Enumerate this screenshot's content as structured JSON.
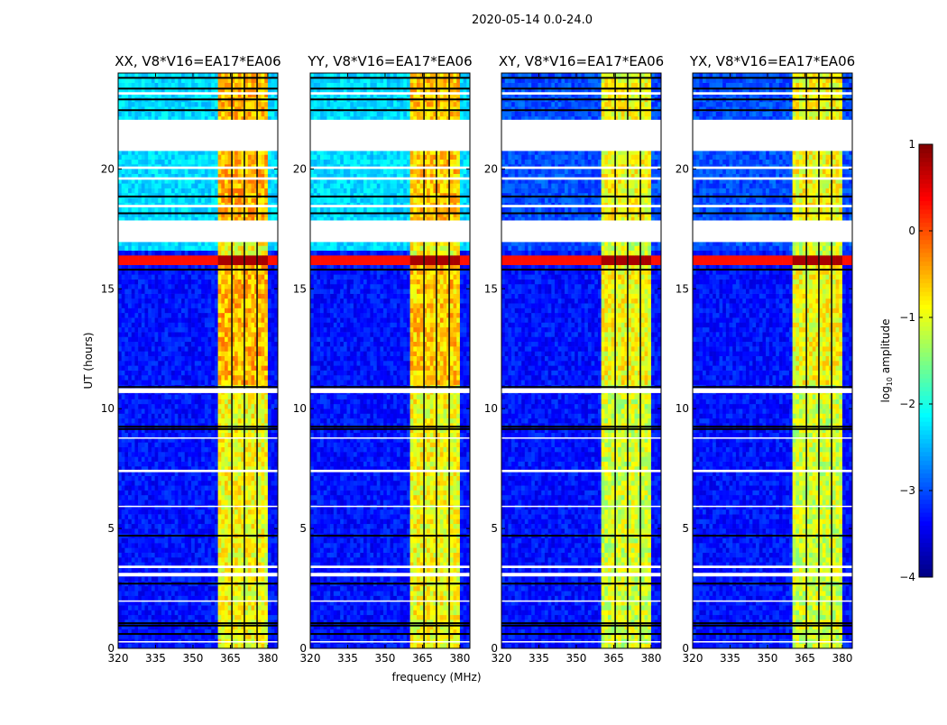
{
  "chart_data": {
    "type": "heatmap",
    "suptitle": "2020-05-14 0.0-24.0",
    "xlabel": "frequency (MHz)",
    "ylabel": "UT (hours)",
    "xlim": [
      320,
      384
    ],
    "ylim": [
      0,
      24
    ],
    "xticks": [
      "320",
      "335",
      "350",
      "365",
      "380"
    ],
    "xtick_values": [
      320,
      335,
      350,
      365,
      380
    ],
    "yticks": [
      "0",
      "5",
      "10",
      "15",
      "20"
    ],
    "ytick_values": [
      0,
      5,
      10,
      15,
      20
    ],
    "colorbar": {
      "label": "log10 amplitude",
      "label_main": "log",
      "label_sub": "10",
      "label_rest": " amplitude",
      "colormap": "jet",
      "range": [
        -4,
        1
      ],
      "ticks": [
        "−4",
        "−3",
        "−2",
        "−1",
        "0",
        "1"
      ],
      "tick_values": [
        -4,
        -3,
        -2,
        -1,
        0,
        1
      ]
    },
    "panels": [
      {
        "title": "XX, V8*V16=EA17*EA06",
        "background": -3.3,
        "late_background": -2.3,
        "band_level": -1.0,
        "mid_band_level": -0.6
      },
      {
        "title": "YY, V8*V16=EA17*EA06",
        "background": -3.3,
        "late_background": -2.3,
        "band_level": -1.0,
        "mid_band_level": -0.7
      },
      {
        "title": "XY, V8*V16=EA17*EA06",
        "background": -3.3,
        "late_background": -3.0,
        "band_level": -1.2,
        "mid_band_level": -1.0
      },
      {
        "title": "YX, V8*V16=EA17*EA06",
        "background": -3.3,
        "late_background": -3.0,
        "band_level": -1.2,
        "mid_band_level": -1.0
      }
    ],
    "rfi_band_mhz": [
      360.5,
      380.3
    ],
    "band_gaps_mhz": [
      365.6,
      370.6,
      375.7
    ],
    "high_amplitude_hours": [
      15.9,
      16.3
    ],
    "flagged_hours": [
      [
        20.75,
        22.05
      ],
      [
        16.95,
        17.85
      ],
      [
        10.65,
        10.85
      ],
      [
        3.0,
        3.15
      ],
      [
        3.35,
        3.45
      ],
      [
        7.35,
        7.45
      ],
      [
        8.75,
        8.8
      ],
      [
        19.55,
        19.65
      ],
      [
        20.0,
        20.1
      ],
      [
        18.4,
        18.5
      ],
      [
        23.1,
        23.2
      ],
      [
        0.25,
        0.3
      ],
      [
        1.95,
        2.0
      ],
      [
        5.9,
        5.95
      ]
    ],
    "dark_hours": [
      0.6,
      0.95,
      1.05,
      2.7,
      4.7,
      9.15,
      9.25,
      10.9,
      15.8,
      17.0,
      18.15,
      18.85,
      22.45,
      22.9,
      23.35,
      23.8
    ]
  }
}
